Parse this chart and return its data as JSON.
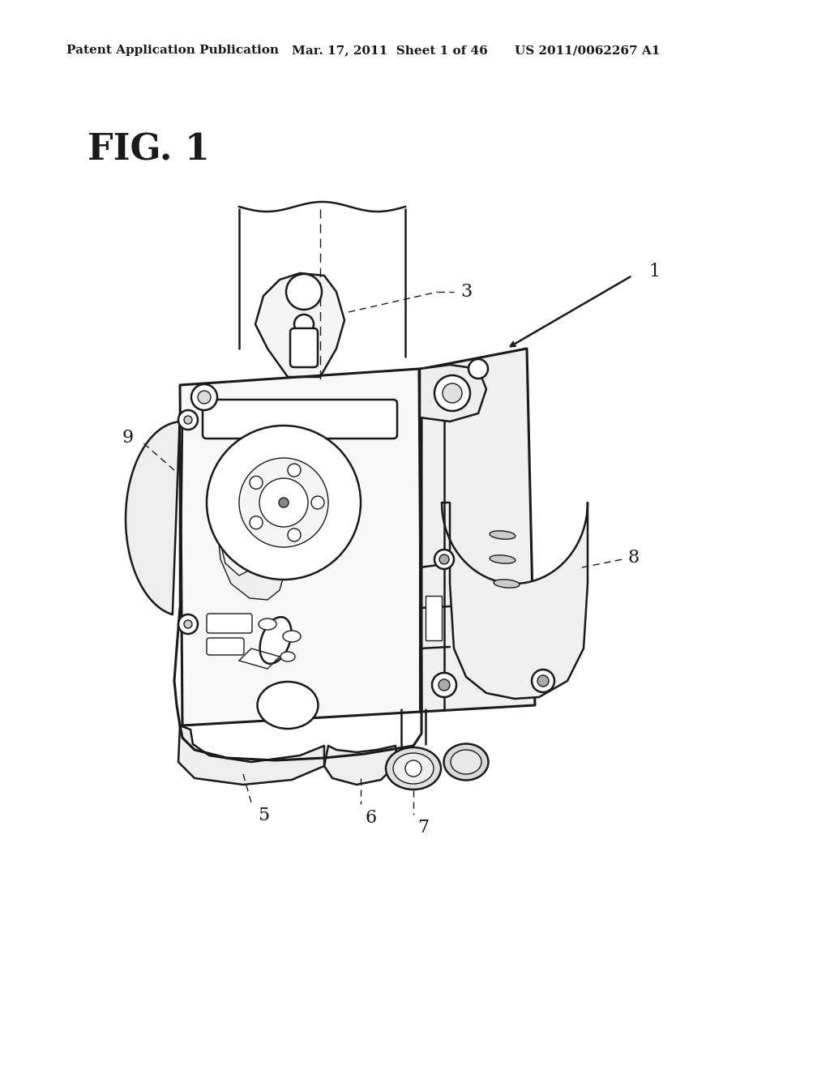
{
  "background_color": "#ffffff",
  "header_left": "Patent Application Publication",
  "header_center": "Mar. 17, 2011  Sheet 1 of 46",
  "header_right": "US 2011/0062267 A1",
  "fig_label": "FIG. 1",
  "header_fontsize": 11,
  "fig_fontsize": 32,
  "label_fontsize": 16,
  "line_color": "#1a1a1a",
  "lw_main": 1.8,
  "lw_thin": 1.0,
  "lw_thick": 2.2
}
